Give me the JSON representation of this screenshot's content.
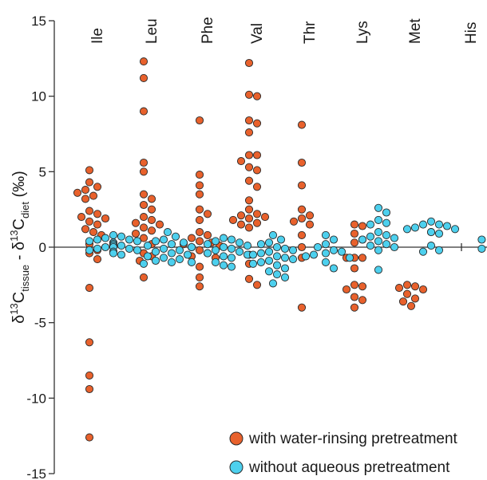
{
  "chart_data": {
    "type": "scatter",
    "ylim": [
      -15,
      15
    ],
    "yticks": [
      15,
      10,
      5,
      0,
      -5,
      -10,
      -15
    ],
    "ytick_labels": [
      "15",
      "10",
      "5",
      "0",
      "-5",
      "-10",
      "-15"
    ],
    "grid": false,
    "legend_position": "bottom-right",
    "categories": [
      "Ile",
      "Leu",
      "Phe",
      "Val",
      "Thr",
      "Lys",
      "Met",
      "His"
    ],
    "series": [
      {
        "name": "with water-rinsing pretreatment",
        "color": "#e8612c",
        "values": [
          [
            5.1,
            4.3,
            4.0,
            3.8,
            3.6,
            3.4,
            3.2,
            2.4,
            2.2,
            2.0,
            1.9,
            1.7,
            1.5,
            1.2,
            1.0,
            0.8,
            0.2,
            -0.2,
            -0.4,
            -0.8,
            -2.7,
            -6.3,
            -8.5,
            -9.4,
            -12.6
          ],
          [
            12.3,
            11.2,
            9.0,
            5.6,
            5.0,
            3.5,
            3.2,
            2.8,
            2.5,
            2.0,
            1.8,
            1.6,
            1.5,
            1.3,
            1.1,
            0.9,
            0.6,
            0.2,
            -0.4,
            -0.6,
            -0.9,
            -2.0
          ],
          [
            8.4,
            4.8,
            4.1,
            3.5,
            2.5,
            2.2,
            1.8,
            1.0,
            0.8,
            0.6,
            0.4,
            0.3,
            0.2,
            0.1,
            0.0,
            -0.2,
            -0.4,
            -0.6,
            -0.7,
            -1.3,
            -2.0,
            -2.6
          ],
          [
            12.2,
            10.1,
            10.0,
            8.4,
            8.2,
            7.6,
            6.1,
            6.1,
            5.7,
            5.3,
            5.1,
            4.4,
            4.0,
            3.1,
            2.5,
            2.2,
            2.1,
            2.0,
            1.9,
            1.8,
            1.6,
            1.5,
            1.3,
            -0.5,
            -1.1,
            -2.1,
            -2.5
          ],
          [
            8.1,
            5.6,
            4.1,
            2.5,
            2.1,
            1.9,
            1.7,
            1.5,
            0.8,
            0.0,
            -0.7,
            -4.0
          ],
          [
            1.5,
            1.4,
            0.9,
            0.5,
            0.3,
            -0.7,
            -0.7,
            -0.7,
            -1.4,
            -2.5,
            -2.6,
            -2.8,
            -3.3,
            -3.5,
            -4.0
          ],
          [
            -2.5,
            -2.6,
            -2.7,
            -2.8,
            -3.1,
            -3.4,
            -3.6,
            -3.9
          ],
          []
        ]
      },
      {
        "name": "without aqueous pretreatment",
        "color": "#4dd0ee",
        "values": [
          [
            0.8,
            0.7,
            0.6,
            0.5,
            0.5,
            0.4,
            0.4,
            0.3,
            0.3,
            0.2,
            0.2,
            0.1,
            0.1,
            0.0,
            0.0,
            -0.1,
            -0.1,
            -0.2,
            -0.2,
            -0.3,
            -0.3,
            -0.4,
            -0.5
          ],
          [
            1.0,
            0.7,
            0.5,
            0.4,
            0.3,
            0.2,
            0.1,
            0.0,
            -0.1,
            -0.2,
            -0.3,
            -0.4,
            -0.5,
            -0.6,
            -0.7,
            -0.8,
            -0.9,
            -1.0,
            -1.0,
            -1.1
          ],
          [
            0.6,
            0.5,
            0.4,
            0.3,
            0.2,
            0.1,
            0.0,
            -0.1,
            -0.2,
            -0.3,
            -0.4,
            -0.5,
            -0.6,
            -0.7,
            -1.0,
            -1.2,
            -1.3
          ],
          [
            0.8,
            0.5,
            0.3,
            0.2,
            0.0,
            -0.1,
            -0.2,
            -0.3,
            -0.4,
            -0.5,
            -0.6,
            -0.7,
            -0.8,
            -0.9,
            -1.0,
            -1.1,
            -1.2,
            -1.4,
            -1.6,
            -1.8,
            -2.0,
            -2.4
          ],
          [
            0.8,
            0.5,
            0.2,
            0.0,
            -0.2,
            -0.3,
            -0.4,
            -0.5,
            -0.6,
            -0.7,
            -1.0,
            -1.4
          ],
          [
            2.6,
            2.3,
            1.8,
            1.6,
            1.5,
            1.0,
            0.8,
            0.7,
            0.6,
            0.5,
            0.4,
            0.2,
            0.1,
            0.0,
            -0.2,
            -1.5
          ],
          [
            1.7,
            1.5,
            1.5,
            1.4,
            1.3,
            1.2,
            1.2,
            1.0,
            1.0,
            0.9,
            0.1,
            -0.2,
            -0.3
          ],
          [
            0.5,
            -0.1
          ]
        ]
      }
    ]
  }
}
